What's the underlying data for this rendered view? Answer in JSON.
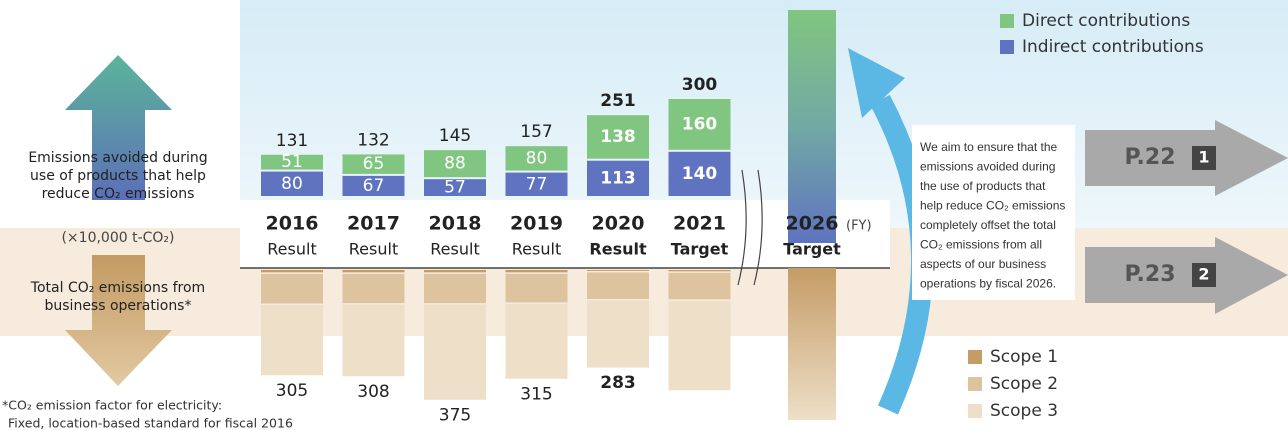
{
  "chart_data": {
    "type": "diverging-bar",
    "categories": [
      "2016",
      "2017",
      "2018",
      "2019",
      "2020",
      "2021"
    ],
    "sublabels": [
      "Result",
      "Result",
      "Result",
      "Result",
      "Result",
      "Target"
    ],
    "upper_series": [
      {
        "name": "Indirect contributions",
        "color": "#5f73c0",
        "values": [
          80,
          67,
          57,
          77,
          113,
          140
        ]
      },
      {
        "name": "Direct contributions",
        "color": "#80c680",
        "values": [
          51,
          65,
          88,
          80,
          138,
          160
        ]
      }
    ],
    "upper_totals": [
      131,
      132,
      145,
      157,
      251,
      300
    ],
    "lower_series": [
      {
        "name": "Scope 1",
        "color": "#c59c66",
        "values": [
          11,
          11,
          11,
          11,
          7,
          8
        ]
      },
      {
        "name": "Scope 2",
        "color": "#ddc39e",
        "values": [
          89,
          88,
          88,
          86,
          80,
          80
        ]
      },
      {
        "name": "Scope 3",
        "color": "#eddfc8",
        "values": [
          205,
          209,
          276,
          218,
          196,
          260
        ]
      }
    ],
    "lower_totals": [
      305,
      308,
      375,
      315,
      283,
      null
    ],
    "target": {
      "year": "2026",
      "unit": "(FY)",
      "label": "Target"
    },
    "upper_label": [
      "Emissions avoided during",
      "use of products that help",
      "reduce CO₂ emissions"
    ],
    "unit_label": "(×10,000 t-CO₂)",
    "lower_label": [
      "Total CO₂ emissions from",
      "business operations*"
    ],
    "footnote": [
      "*CO₂ emission factor for electricity:",
      "Fixed, location-based standard for fiscal 2016"
    ],
    "message": [
      "We aim to ensure that the",
      "emissions avoided during",
      "the use of products that",
      "help reduce CO₂ emissions",
      "completely offset the total",
      "CO₂ emissions from all",
      "aspects of our business",
      "operations by fiscal 2026."
    ],
    "page_refs": [
      {
        "page": "P.22",
        "number": "1"
      },
      {
        "page": "P.23",
        "number": "2"
      }
    ]
  }
}
